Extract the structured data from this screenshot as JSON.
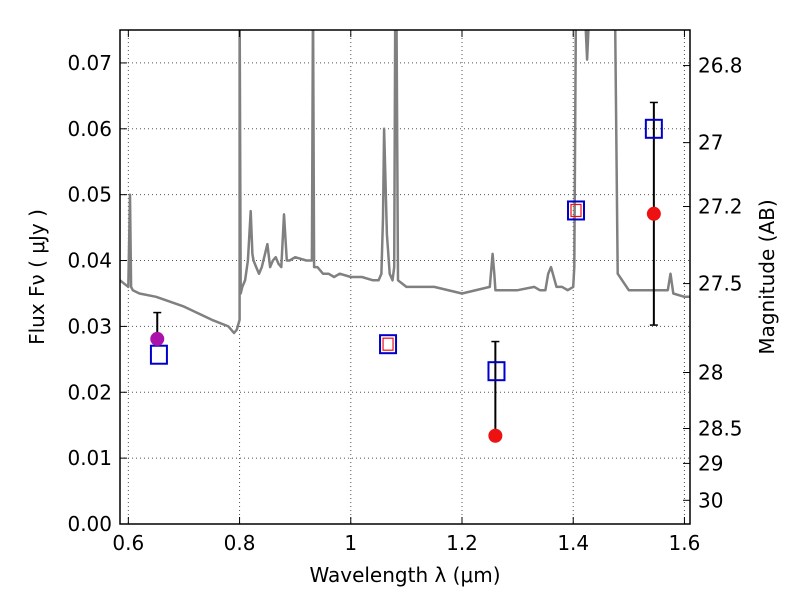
{
  "chart_data": {
    "type": "scatter",
    "xlabel": "Wavelength  λ (μm)",
    "ylabel": "Flux  Fν  ( μJy )",
    "ylabel_right": "Magnitude (AB)",
    "xlim": [
      0.585,
      1.61
    ],
    "ylim": [
      0.0,
      0.075
    ],
    "grid": true,
    "x_ticks": [
      0.6,
      0.8,
      1.0,
      1.2,
      1.4,
      1.6
    ],
    "x_tick_labels": [
      "0.6",
      "0.8",
      "1",
      "1.2",
      "1.4",
      "1.6"
    ],
    "y_ticks": [
      0.0,
      0.01,
      0.02,
      0.03,
      0.04,
      0.05,
      0.06,
      0.07
    ],
    "y_tick_labels": [
      "0.00",
      "0.01",
      "0.02",
      "0.03",
      "0.04",
      "0.05",
      "0.06",
      "0.07"
    ],
    "right_ticks": [
      {
        "label": "26.8",
        "flux": 0.0696
      },
      {
        "label": "27",
        "flux": 0.0579
      },
      {
        "label": "27.2",
        "flux": 0.0482
      },
      {
        "label": "27.5",
        "flux": 0.0365
      },
      {
        "label": "28",
        "flux": 0.023
      },
      {
        "label": "28.5",
        "flux": 0.0145
      },
      {
        "label": "29",
        "flux": 0.0092
      },
      {
        "label": "30",
        "flux": 0.0036
      }
    ],
    "colors": {
      "spectrum": "#808080",
      "model_marker": "#0000cc",
      "observed": "#ee1111",
      "observed_optical": "#aa11aa",
      "errorbar": "#000000"
    },
    "series": [
      {
        "kind": "spectrum",
        "x": [
          0.585,
          0.6,
          0.603,
          0.605,
          0.608,
          0.62,
          0.65,
          0.7,
          0.75,
          0.78,
          0.79,
          0.795,
          0.8,
          0.8,
          0.802,
          0.805,
          0.81,
          0.815,
          0.82,
          0.823,
          0.825,
          0.83,
          0.835,
          0.84,
          0.85,
          0.855,
          0.86,
          0.865,
          0.87,
          0.875,
          0.88,
          0.885,
          0.89,
          0.9,
          0.92,
          0.93,
          0.932,
          0.934,
          0.94,
          0.95,
          0.96,
          0.97,
          0.98,
          1.0,
          1.02,
          1.04,
          1.05,
          1.055,
          1.058,
          1.06,
          1.065,
          1.07,
          1.075,
          1.078,
          1.08,
          1.082,
          1.085,
          1.1,
          1.12,
          1.15,
          1.2,
          1.25,
          1.255,
          1.258,
          1.26,
          1.262,
          1.265,
          1.3,
          1.33,
          1.34,
          1.35,
          1.355,
          1.36,
          1.37,
          1.38,
          1.39,
          1.4,
          1.402,
          1.405,
          1.41,
          1.42,
          1.425,
          1.43,
          1.44,
          1.45,
          1.46,
          1.47,
          1.475,
          1.48,
          1.5,
          1.53,
          1.55,
          1.57,
          1.575,
          1.58,
          1.6,
          1.61
        ],
        "y": [
          0.037,
          0.036,
          0.05,
          0.036,
          0.0355,
          0.035,
          0.0345,
          0.033,
          0.031,
          0.03,
          0.029,
          0.0295,
          0.031,
          0.08,
          0.035,
          0.036,
          0.037,
          0.04,
          0.0475,
          0.041,
          0.04,
          0.039,
          0.038,
          0.039,
          0.0425,
          0.039,
          0.04,
          0.0405,
          0.0395,
          0.039,
          0.047,
          0.04,
          0.04,
          0.0405,
          0.04,
          0.04,
          0.08,
          0.039,
          0.039,
          0.038,
          0.038,
          0.0375,
          0.038,
          0.0375,
          0.0375,
          0.037,
          0.037,
          0.038,
          0.0465,
          0.06,
          0.044,
          0.038,
          0.037,
          0.039,
          0.08,
          0.08,
          0.037,
          0.036,
          0.036,
          0.036,
          0.035,
          0.036,
          0.041,
          0.038,
          0.0355,
          0.0355,
          0.0355,
          0.0355,
          0.036,
          0.0355,
          0.0355,
          0.038,
          0.039,
          0.036,
          0.036,
          0.0355,
          0.036,
          0.039,
          0.08,
          0.08,
          0.08,
          0.0705,
          0.08,
          0.08,
          0.08,
          0.08,
          0.08,
          0.08,
          0.038,
          0.0355,
          0.0355,
          0.0355,
          0.0355,
          0.038,
          0.035,
          0.0345,
          0.0345
        ]
      },
      {
        "kind": "model_squares",
        "x": [
          0.655,
          1.067,
          1.405,
          1.262,
          1.545
        ],
        "y": [
          0.0257,
          0.0273,
          0.0476,
          0.0232,
          0.06
        ]
      },
      {
        "kind": "observed",
        "x": [
          0.652,
          1.26,
          1.545
        ],
        "y": [
          0.0281,
          0.0134,
          0.0471
        ],
        "yerr_low": [
          0.0281,
          0.0134,
          0.0302
        ],
        "yerr_high": [
          0.0321,
          0.0277,
          0.064
        ],
        "colors": [
          "#aa11aa",
          "#ee1111",
          "#ee1111"
        ]
      }
    ]
  }
}
